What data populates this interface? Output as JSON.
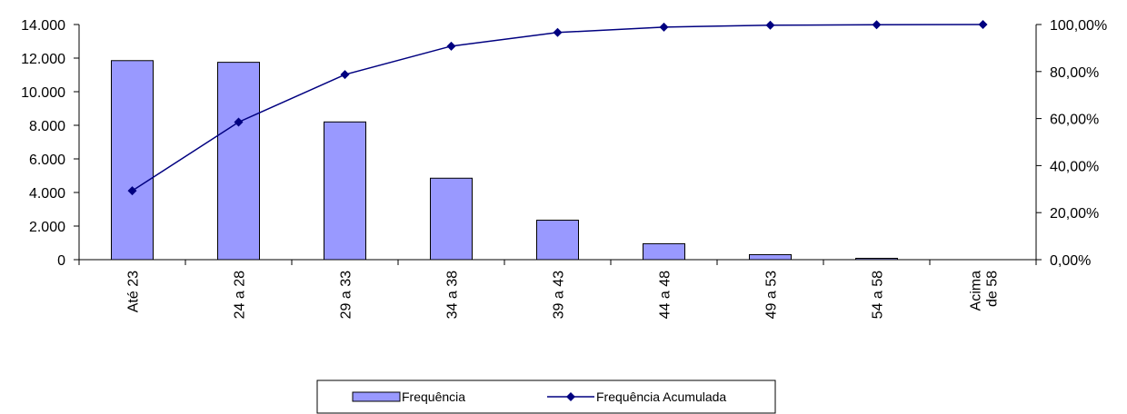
{
  "chart_data": {
    "type": "bar",
    "categories": [
      [
        "Até 23"
      ],
      [
        "24 a 28"
      ],
      [
        "29 a 33"
      ],
      [
        "34 a 38"
      ],
      [
        "39 a 43"
      ],
      [
        "44 a 48"
      ],
      [
        "49 a 53"
      ],
      [
        "54 a 58"
      ],
      [
        "Acima",
        "de 58"
      ]
    ],
    "series": [
      {
        "name": "Frequência",
        "type": "bar",
        "axis": "left",
        "color": "#9999ff",
        "values": [
          11850,
          11750,
          8200,
          4850,
          2350,
          950,
          300,
          80,
          0
        ]
      },
      {
        "name": "Frequência Acumulada",
        "type": "line",
        "axis": "right",
        "color": "#000080",
        "marker": "diamond",
        "values": [
          29.3,
          58.5,
          78.7,
          90.8,
          96.6,
          98.9,
          99.7,
          99.9,
          100.0
        ]
      }
    ],
    "y_left": {
      "ylim": [
        0,
        14000
      ],
      "ticks": [
        0,
        2000,
        4000,
        6000,
        8000,
        10000,
        12000,
        14000
      ],
      "tick_labels": [
        "0",
        "2.000",
        "4.000",
        "6.000",
        "8.000",
        "10.000",
        "12.000",
        "14.000"
      ]
    },
    "y_right": {
      "ylim": [
        0,
        100
      ],
      "ticks": [
        0,
        20,
        40,
        60,
        80,
        100
      ],
      "tick_labels": [
        "0,00%",
        "20,00%",
        "40,00%",
        "60,00%",
        "80,00%",
        "100,00%"
      ]
    },
    "title": "",
    "xlabel": "",
    "ylabel": "",
    "grid": false,
    "legend_position": "bottom"
  }
}
